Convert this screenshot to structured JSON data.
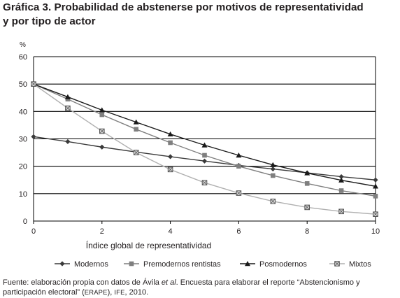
{
  "title": {
    "line1": "Gráfica 3. Probabilidad de abstenerse por motivos de representatividad",
    "line2": "y por tipo de actor"
  },
  "source": {
    "prefix": "Fuente: elaboración propia con datos de Ávila ",
    "etal": "et al",
    "middle": ". Encuesta para elaborar el reporte “Abstencionismo y participación electoral” (",
    "erape": "ERAPE",
    "sep": "), ",
    "ife": "IFE",
    "suffix": ", 2010."
  },
  "chart_data": {
    "type": "line",
    "title": "Gráfica 3. Probabilidad de abstenerse por motivos de representatividad y por tipo de actor",
    "xlabel": "Índice global de representatividad",
    "ylabel": "%",
    "xlim": [
      0,
      10
    ],
    "ylim": [
      0,
      60
    ],
    "xticks": [
      "0",
      "2",
      "4",
      "6",
      "8",
      "10"
    ],
    "yticks": [
      "0",
      "10",
      "20",
      "30",
      "40",
      "50",
      "60"
    ],
    "grid": "horizontal",
    "legend_position": "bottom",
    "x": [
      0,
      1,
      2,
      3,
      4,
      5,
      6,
      7,
      8,
      9,
      10
    ],
    "series": [
      {
        "name": "Modernos",
        "marker": "diamond",
        "color": "#3a3a3a",
        "values": [
          30.8,
          29,
          27,
          25.2,
          23.5,
          21.9,
          20.3,
          19,
          17.6,
          16.2,
          15
        ]
      },
      {
        "name": "Premodernos rentistas",
        "marker": "square",
        "color": "#7f7f7f",
        "values": [
          50,
          44.5,
          38.8,
          33.5,
          28.6,
          24,
          20,
          16.6,
          13.7,
          11.1,
          9.1
        ]
      },
      {
        "name": "Posmodernos",
        "marker": "triangle",
        "color": "#1a1a1a",
        "values": [
          50,
          45.3,
          40.5,
          36.1,
          31.7,
          27.7,
          24,
          20.5,
          17.5,
          14.9,
          12.7
        ]
      },
      {
        "name": "Mixtos",
        "marker": "square-x",
        "color": "#b0b0b0",
        "values": [
          50,
          41.2,
          32.8,
          25,
          18.8,
          14,
          10.2,
          7.2,
          5,
          3.5,
          2.5
        ]
      }
    ]
  }
}
